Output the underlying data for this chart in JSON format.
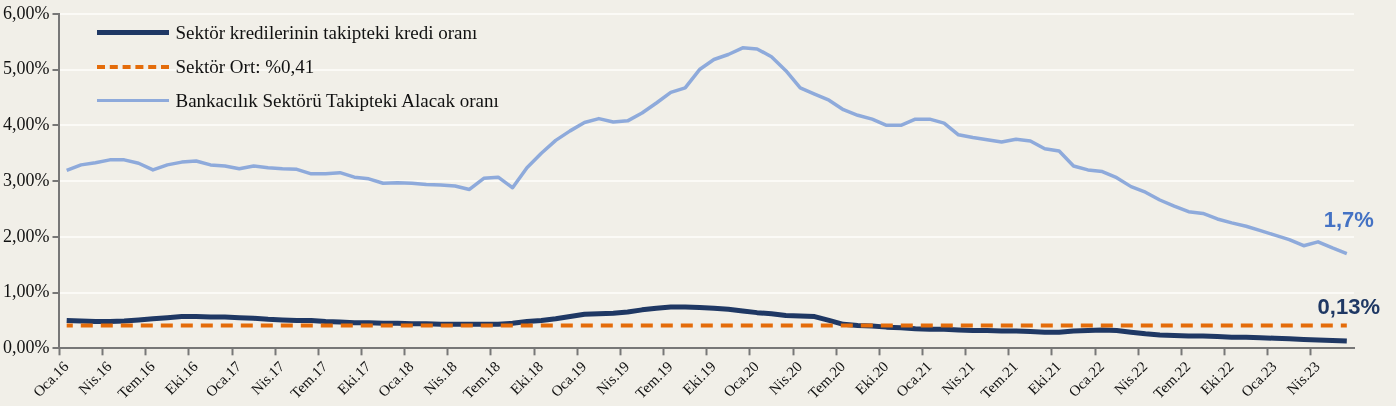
{
  "chart_data": {
    "type": "line",
    "categories": [
      "Oca.16",
      null,
      null,
      "Nis.16",
      null,
      null,
      "Tem.16",
      null,
      null,
      "Eki.16",
      null,
      null,
      "Oca.17",
      null,
      null,
      "Nis.17",
      null,
      null,
      "Tem.17",
      null,
      null,
      "Eki.17",
      null,
      null,
      "Oca.18",
      null,
      null,
      "Nis.18",
      null,
      null,
      "Tem.18",
      null,
      null,
      "Eki.18",
      null,
      null,
      "Oca.19",
      null,
      null,
      "Nis.19",
      null,
      null,
      "Tem.19",
      null,
      null,
      "Eki.19",
      null,
      null,
      "Oca.20",
      null,
      null,
      "Nis.20",
      null,
      null,
      "Tem.20",
      null,
      null,
      "Eki.20",
      null,
      null,
      "Oca.21",
      null,
      null,
      "Nis.21",
      null,
      null,
      "Tem.21",
      null,
      null,
      "Eki.21",
      null,
      null,
      "Oca.22",
      null,
      null,
      "Nis.22",
      null,
      null,
      "Tem.22",
      null,
      null,
      "Eki.22",
      null,
      null,
      "Oca.23",
      null,
      null,
      "Nis.23",
      null,
      null
    ],
    "series": [
      {
        "name": "Sektör kredilerinin takipteki kredi oranı",
        "color": "#1f3864",
        "line_style": "solid",
        "values": [
          0.5,
          0.49,
          0.48,
          0.48,
          0.49,
          0.51,
          0.53,
          0.55,
          0.57,
          0.57,
          0.56,
          0.56,
          0.55,
          0.54,
          0.52,
          0.51,
          0.5,
          0.5,
          0.48,
          0.47,
          0.46,
          0.46,
          0.45,
          0.45,
          0.44,
          0.44,
          0.43,
          0.43,
          0.43,
          0.43,
          0.43,
          0.45,
          0.48,
          0.5,
          0.53,
          0.57,
          0.61,
          0.62,
          0.63,
          0.65,
          0.69,
          0.72,
          0.74,
          0.74,
          0.73,
          0.72,
          0.7,
          0.67,
          0.64,
          0.62,
          0.59,
          0.58,
          0.57,
          0.5,
          0.43,
          0.41,
          0.4,
          0.38,
          0.37,
          0.35,
          0.34,
          0.34,
          0.33,
          0.32,
          0.32,
          0.31,
          0.31,
          0.3,
          0.29,
          0.29,
          0.31,
          0.32,
          0.33,
          0.32,
          0.29,
          0.26,
          0.24,
          0.23,
          0.22,
          0.22,
          0.21,
          0.2,
          0.2,
          0.19,
          0.18,
          0.17,
          0.16,
          0.15,
          0.14,
          0.13
        ],
        "value_labels": [
          null,
          null,
          null,
          null,
          null,
          null,
          null,
          null,
          null,
          null,
          null,
          null,
          null,
          null,
          null,
          null,
          null,
          null,
          null,
          null,
          null,
          null,
          null,
          null,
          null,
          null,
          null,
          null,
          null,
          null,
          null,
          null,
          null,
          null,
          null,
          null,
          null,
          null,
          null,
          null,
          null,
          null,
          null,
          null,
          null,
          null,
          null,
          null,
          null,
          null,
          null,
          null,
          null,
          null,
          null,
          null,
          null,
          null,
          null,
          null,
          null,
          null,
          null,
          null,
          null,
          null,
          null,
          null,
          null,
          null,
          null,
          null,
          null,
          null,
          null,
          null,
          null,
          null,
          null,
          null,
          null,
          null,
          null,
          null,
          null,
          null,
          null,
          null,
          null,
          "0,13%"
        ]
      },
      {
        "name": "Sektör Ort: %0,41",
        "color": "#e46c0a",
        "line_style": "dashed",
        "values": [
          0.41,
          0.41,
          0.41,
          0.41,
          0.41,
          0.41,
          0.41,
          0.41,
          0.41,
          0.41,
          0.41,
          0.41,
          0.41,
          0.41,
          0.41,
          0.41,
          0.41,
          0.41,
          0.41,
          0.41,
          0.41,
          0.41,
          0.41,
          0.41,
          0.41,
          0.41,
          0.41,
          0.41,
          0.41,
          0.41,
          0.41,
          0.41,
          0.41,
          0.41,
          0.41,
          0.41,
          0.41,
          0.41,
          0.41,
          0.41,
          0.41,
          0.41,
          0.41,
          0.41,
          0.41,
          0.41,
          0.41,
          0.41,
          0.41,
          0.41,
          0.41,
          0.41,
          0.41,
          0.41,
          0.41,
          0.41,
          0.41,
          0.41,
          0.41,
          0.41,
          0.41,
          0.41,
          0.41,
          0.41,
          0.41,
          0.41,
          0.41,
          0.41,
          0.41,
          0.41,
          0.41,
          0.41,
          0.41,
          0.41,
          0.41,
          0.41,
          0.41,
          0.41,
          0.41,
          0.41,
          0.41,
          0.41,
          0.41,
          0.41,
          0.41,
          0.41,
          0.41,
          0.41,
          0.41,
          0.41
        ]
      },
      {
        "name": "Bankacılık Sektörü Takipteki Alacak oranı",
        "color": "#8eaadb",
        "line_style": "solid",
        "values": [
          3.19,
          3.29,
          3.33,
          3.38,
          3.38,
          3.32,
          3.2,
          3.29,
          3.34,
          3.36,
          3.29,
          3.27,
          3.22,
          3.27,
          3.24,
          3.22,
          3.21,
          3.13,
          3.13,
          3.15,
          3.07,
          3.04,
          2.96,
          2.97,
          2.96,
          2.94,
          2.93,
          2.91,
          2.85,
          3.05,
          3.07,
          2.88,
          3.24,
          3.5,
          3.73,
          3.9,
          4.05,
          4.12,
          4.06,
          4.08,
          4.22,
          4.4,
          4.59,
          4.67,
          5.0,
          5.18,
          5.27,
          5.39,
          5.37,
          5.23,
          4.98,
          4.67,
          4.56,
          4.45,
          4.28,
          4.18,
          4.11,
          4.0,
          4.0,
          4.11,
          4.11,
          4.04,
          3.83,
          3.78,
          3.74,
          3.7,
          3.75,
          3.72,
          3.58,
          3.54,
          3.27,
          3.2,
          3.17,
          3.06,
          2.9,
          2.8,
          2.66,
          2.55,
          2.45,
          2.42,
          2.32,
          2.25,
          2.19,
          2.11,
          2.03,
          1.95,
          1.84,
          1.91,
          1.8,
          1.7
        ],
        "value_labels": [
          null,
          null,
          null,
          null,
          null,
          null,
          null,
          null,
          null,
          null,
          null,
          null,
          null,
          null,
          null,
          null,
          null,
          null,
          null,
          null,
          null,
          null,
          null,
          null,
          null,
          null,
          null,
          null,
          null,
          null,
          null,
          null,
          null,
          null,
          null,
          null,
          null,
          null,
          null,
          null,
          null,
          null,
          null,
          null,
          null,
          null,
          null,
          null,
          null,
          null,
          null,
          null,
          null,
          null,
          null,
          null,
          null,
          null,
          null,
          null,
          null,
          null,
          null,
          null,
          null,
          null,
          null,
          null,
          null,
          null,
          null,
          null,
          null,
          null,
          null,
          null,
          null,
          null,
          null,
          null,
          null,
          null,
          null,
          null,
          null,
          null,
          null,
          null,
          null,
          "1,7%"
        ]
      }
    ],
    "ylim": [
      0,
      6
    ],
    "yticks": [
      {
        "value": 0,
        "label": "0,00%"
      },
      {
        "value": 1,
        "label": "1,00%"
      },
      {
        "value": 2,
        "label": "2,00%"
      },
      {
        "value": 3,
        "label": "3,00%"
      },
      {
        "value": 4,
        "label": "4,00%"
      },
      {
        "value": 5,
        "label": "5,00%"
      },
      {
        "value": 6,
        "label": "6,00%"
      }
    ],
    "grid": "y",
    "legend": "top left",
    "marker": "none"
  }
}
